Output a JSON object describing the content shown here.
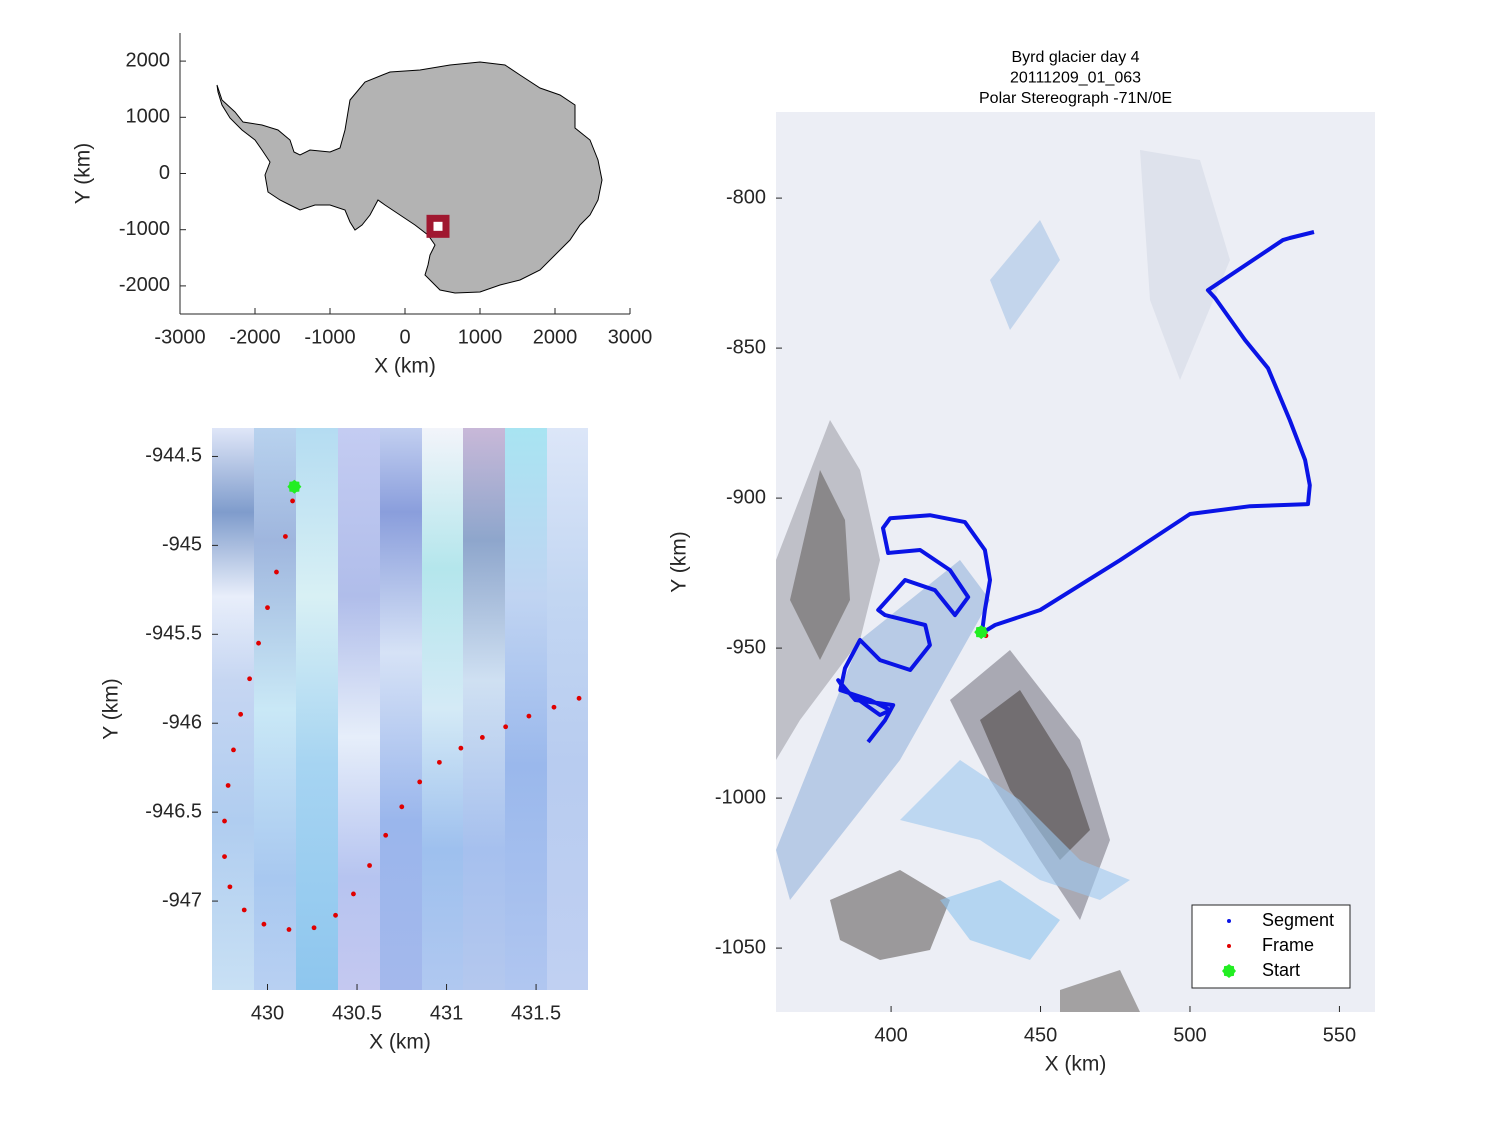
{
  "chart_data": [
    {
      "type": "scatter",
      "xlabel": "X (km)",
      "ylabel": "Y (km)",
      "xlim": [
        -3000,
        3000
      ],
      "ylim": [
        -2500,
        2500
      ],
      "xticks": [
        -3000,
        -2000,
        -1000,
        0,
        1000,
        2000,
        3000
      ],
      "yticks": [
        -2000,
        -1000,
        0,
        1000,
        2000
      ],
      "series": [
        {
          "color": "#a01830",
          "marker": "square",
          "x": [
            440
          ],
          "values": [
            -940
          ]
        }
      ]
    },
    {
      "type": "scatter",
      "xlabel": "X (km)",
      "ylabel": "Y (km)",
      "xlim": [
        429.69,
        431.79
      ],
      "ylim": [
        -947.5,
        -944.34
      ],
      "xticks": [
        430,
        430.5,
        431,
        431.5
      ],
      "yticks": [
        -944.5,
        -945,
        -945.5,
        -946,
        -946.5,
        -947
      ],
      "series": [
        {
          "color": "#e00000",
          "marker": "dot",
          "x": [
            430.14,
            430.1,
            430.05,
            430.0,
            429.95,
            429.9,
            429.85,
            429.81,
            429.78,
            429.76,
            429.76,
            429.79,
            429.87,
            429.98,
            430.12,
            430.26,
            430.38,
            430.48,
            430.57,
            430.66,
            430.75,
            430.85,
            430.96,
            431.08,
            431.2,
            431.33,
            431.46,
            431.6,
            431.74
          ],
          "values": [
            -944.75,
            -944.95,
            -945.15,
            -945.35,
            -945.55,
            -945.75,
            -945.95,
            -946.15,
            -946.35,
            -946.55,
            -946.75,
            -946.92,
            -947.05,
            -947.13,
            -947.16,
            -947.15,
            -947.08,
            -946.96,
            -946.8,
            -946.63,
            -946.47,
            -946.33,
            -946.22,
            -946.14,
            -946.08,
            -946.02,
            -945.96,
            -945.91,
            -945.86
          ]
        },
        {
          "color": "#22ee22",
          "marker": "star",
          "x": [
            430.15
          ],
          "values": [
            -944.67
          ]
        }
      ]
    },
    {
      "type": "line",
      "title": [
        "Byrd glacier day 4",
        "20111209_01_063",
        "Polar Stereograph -71N/0E"
      ],
      "xlabel": "X (km)",
      "ylabel": "Y (km)",
      "xlim": [
        361.5,
        561.9
      ],
      "ylim": [
        -1071.3,
        -771.3
      ],
      "xticks": [
        400,
        450,
        500,
        550
      ],
      "yticks": [
        -800,
        -850,
        -900,
        -950,
        -1000,
        -1050
      ],
      "legend": "lower right",
      "series": [
        {
          "name": "Segment",
          "color": "#0a14e6",
          "marker": "line",
          "x": [
            541.5,
            533.4,
            531.1,
            506,
            508.4,
            518.4,
            526.1,
            533.4,
            538.5,
            540.1,
            539.5,
            520.1,
            500,
            476.6,
            449.9,
            434.8,
            430.4,
            431.4,
            433.1,
            431.4,
            424.7,
            413,
            399.7,
            397.3,
            399,
            409.7,
            419.7,
            425.8,
            421.4,
            414.7,
            404.7,
            395.7,
            398,
            411.4,
            413,
            406.4,
            396.3,
            389.6,
            384.6,
            383,
            393,
            399.7,
            396.3,
            384.6,
            382.3,
            388,
            400.7,
            398,
            392.3
          ],
          "values": [
            -811.3,
            -813.3,
            -814,
            -830.7,
            -833.3,
            -847.3,
            -856.7,
            -874,
            -887.3,
            -895.7,
            -902,
            -902.7,
            -905.3,
            -920.7,
            -937.3,
            -942.3,
            -945,
            -937.3,
            -927.3,
            -917.3,
            -908,
            -905.7,
            -906.7,
            -910,
            -918.3,
            -917.3,
            -924,
            -933,
            -939,
            -930.7,
            -927.3,
            -937.3,
            -939,
            -942.3,
            -949,
            -957.3,
            -954,
            -947.3,
            -956.7,
            -964,
            -967.3,
            -970.7,
            -972.3,
            -964,
            -960.7,
            -967.3,
            -969,
            -974,
            -981.3
          ]
        },
        {
          "name": "Frame",
          "color": "#e00000",
          "marker": "dot",
          "x": [
            430.15,
            431.74
          ],
          "values": [
            -944.67,
            -945.86
          ]
        },
        {
          "name": "Start",
          "color": "#22ee22",
          "marker": "star",
          "x": [
            430.15
          ],
          "values": [
            -944.67
          ]
        }
      ]
    }
  ]
}
